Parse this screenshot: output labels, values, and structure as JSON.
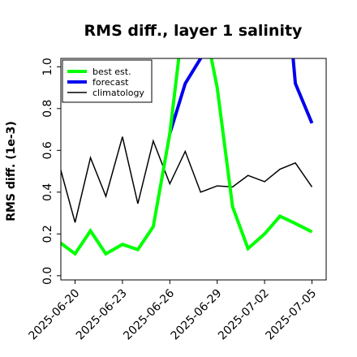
{
  "chart_data": {
    "type": "line",
    "title": "RMS diff., layer 1 salinity",
    "ylabel": "RMS diff. (1e-3)",
    "xlabel": "",
    "ylim": [
      -0.02,
      1.04
    ],
    "yticks": [
      0.0,
      0.2,
      0.4,
      0.6,
      0.8,
      1.0
    ],
    "ytick_labels": [
      "0.0",
      "0.2",
      "0.4",
      "0.6",
      "0.8",
      "1.0"
    ],
    "xlim": [
      -0.6,
      10.6
    ],
    "xticks": [
      {
        "x": 0,
        "label": "2025-06-20",
        "color": "#000000"
      },
      {
        "x": 2,
        "label": "2025-06-23",
        "color": "#000000"
      },
      {
        "x": 4,
        "label": "2025-06-26",
        "color": "#2e8b2e"
      },
      {
        "x": 6,
        "label": "2025-06-29",
        "color": "#000000"
      },
      {
        "x": 8,
        "label": "2025-07-02",
        "color": "#000000"
      },
      {
        "x": 10,
        "label": "2025-07-05",
        "color": "#000000"
      }
    ],
    "legend_position": "top-left",
    "grid": false,
    "series": [
      {
        "name": "best est.",
        "color": "#00ff00",
        "points": [
          [
            -0.65,
            0.16
          ],
          [
            0,
            0.105
          ],
          [
            0.65,
            0.215
          ],
          [
            1.3,
            0.105
          ],
          [
            2,
            0.15
          ],
          [
            2.65,
            0.125
          ],
          [
            3.3,
            0.235
          ],
          [
            4,
            0.68
          ],
          [
            4.65,
            1.3
          ],
          [
            5.3,
            1.3
          ],
          [
            6,
            0.9
          ],
          [
            6.65,
            0.33
          ],
          [
            7.3,
            0.13
          ],
          [
            8,
            0.2
          ],
          [
            8.65,
            0.285
          ],
          [
            9.3,
            0.25
          ],
          [
            10,
            0.21
          ]
        ]
      },
      {
        "name": "forecast",
        "color": "#0000ee",
        "points": [
          [
            4,
            0.68
          ],
          [
            4.65,
            0.92
          ],
          [
            5.3,
            1.04
          ],
          [
            5.8,
            1.3
          ],
          [
            9,
            1.3
          ],
          [
            9.3,
            0.92
          ],
          [
            10,
            0.73
          ]
        ]
      },
      {
        "name": "climatology",
        "color": "#000000",
        "points": [
          [
            -0.65,
            0.525
          ],
          [
            0,
            0.255
          ],
          [
            0.65,
            0.565
          ],
          [
            1.3,
            0.38
          ],
          [
            2,
            0.665
          ],
          [
            2.65,
            0.345
          ],
          [
            3.3,
            0.645
          ],
          [
            4,
            0.44
          ],
          [
            4.65,
            0.595
          ],
          [
            5.3,
            0.4
          ],
          [
            6,
            0.43
          ],
          [
            6.65,
            0.425
          ],
          [
            7.3,
            0.48
          ],
          [
            8,
            0.45
          ],
          [
            8.65,
            0.51
          ],
          [
            9.3,
            0.54
          ],
          [
            10,
            0.425
          ]
        ]
      }
    ]
  }
}
